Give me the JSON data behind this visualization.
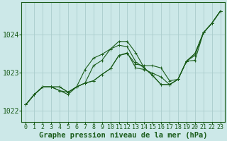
{
  "background_color": "#cce8e8",
  "grid_color": "#aacccc",
  "line_color": "#1a5c1a",
  "xlabel": "Graphe pression niveau de la mer (hPa)",
  "xlabel_fontsize": 7.5,
  "tick_fontsize": 6,
  "ylim": [
    1021.7,
    1024.85
  ],
  "yticks": [
    1022,
    1023,
    1024
  ],
  "xlim": [
    -0.5,
    23.5
  ],
  "xticks": [
    0,
    1,
    2,
    3,
    4,
    5,
    6,
    7,
    8,
    9,
    10,
    11,
    12,
    13,
    14,
    15,
    16,
    17,
    18,
    19,
    20,
    21,
    22,
    23
  ],
  "series": [
    [
      1022.15,
      1022.42,
      1022.62,
      1022.62,
      1022.62,
      1022.48,
      1022.62,
      1022.72,
      1022.78,
      1022.95,
      1023.1,
      1023.45,
      1023.5,
      1023.22,
      1023.18,
      1023.18,
      1023.12,
      1022.78,
      1022.82,
      1023.3,
      1023.45,
      1024.05,
      1024.3,
      1024.62
    ],
    [
      1022.15,
      1022.42,
      1022.62,
      1022.62,
      1022.62,
      1022.48,
      1022.62,
      1023.08,
      1023.38,
      1023.48,
      1023.62,
      1023.82,
      1023.82,
      1023.52,
      1023.12,
      1022.92,
      1022.68,
      1022.68,
      1022.82,
      1023.3,
      1023.5,
      1024.05,
      1024.3,
      1024.62
    ],
    [
      1022.15,
      1022.42,
      1022.62,
      1022.62,
      1022.52,
      1022.48,
      1022.62,
      1022.72,
      1023.18,
      1023.32,
      1023.62,
      1023.72,
      1023.68,
      1023.28,
      1023.12,
      1022.92,
      1022.68,
      1022.68,
      1022.82,
      1023.3,
      1023.5,
      1024.05,
      1024.3,
      1024.62
    ],
    [
      1022.15,
      1022.42,
      1022.62,
      1022.62,
      1022.52,
      1022.42,
      1022.62,
      1022.72,
      1022.78,
      1022.95,
      1023.1,
      1023.45,
      1023.52,
      1023.12,
      1023.08,
      1022.98,
      1022.88,
      1022.68,
      1022.82,
      1023.3,
      1023.32,
      1024.05,
      1024.3,
      1024.62
    ]
  ],
  "marker": "+",
  "markersize": 3,
  "linewidth": 0.8
}
